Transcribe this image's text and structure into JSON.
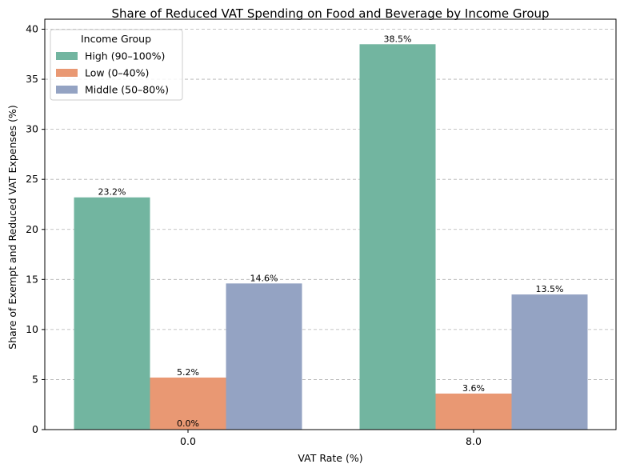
{
  "chart_data": {
    "type": "bar",
    "title": "Share of Reduced VAT Spending on Food and Beverage by Income Group",
    "xlabel": "VAT Rate (%)",
    "ylabel": "Share of Exempt and Reduced VAT Expenses (%)",
    "categories": [
      "0.0",
      "8.0"
    ],
    "ylim": [
      0,
      41
    ],
    "yticks": [
      0,
      5,
      10,
      15,
      20,
      25,
      30,
      35,
      40
    ],
    "grid": "y",
    "legend": {
      "title": "Income Group",
      "placement": "top-left"
    },
    "series": [
      {
        "name": "High (90–100%)",
        "color": "#72b5a0",
        "values": [
          23.2,
          38.5
        ],
        "labels": [
          "23.2%",
          "38.5%"
        ]
      },
      {
        "name": "Low (0–40%)",
        "color": "#e99873",
        "values": [
          5.2,
          3.6
        ],
        "labels": [
          "5.2%",
          "3.6%"
        ]
      },
      {
        "name": "Middle (50–80%)",
        "color": "#94a3c3",
        "values": [
          14.6,
          13.5
        ],
        "labels": [
          "14.6%",
          "13.5%"
        ]
      }
    ],
    "annotations": [
      {
        "text": "0.0%",
        "category": "0.0",
        "value": 0
      }
    ]
  }
}
